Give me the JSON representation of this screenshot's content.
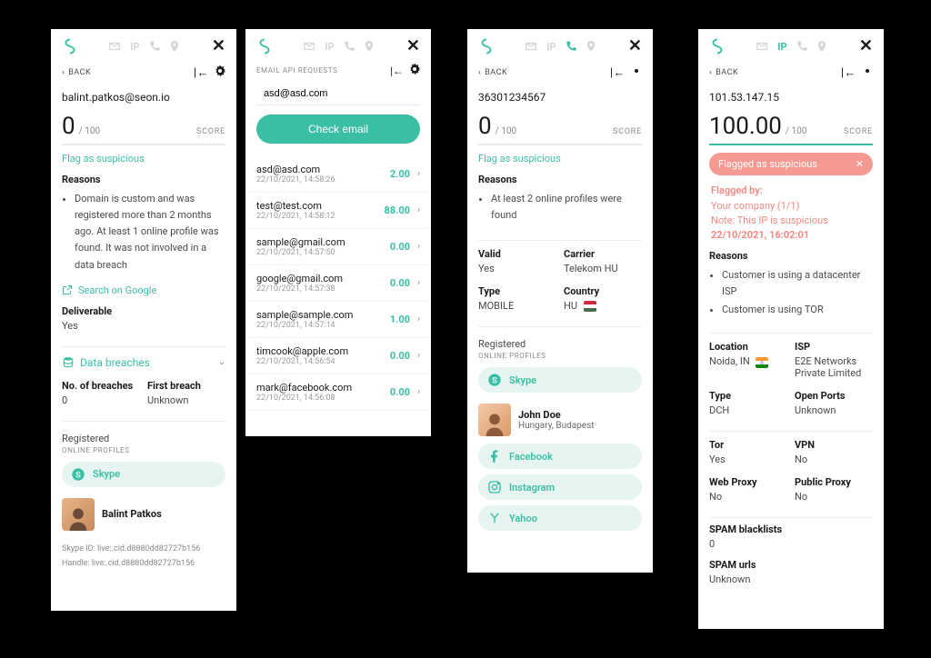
{
  "colors": {
    "accent": "#3bbfa4",
    "panel_bg": "#ffffff",
    "body_bg": "#000000",
    "text": "#1a1a1a",
    "muted": "#8a8a8a",
    "chip_bg": "#e6f5f1",
    "flag_banner_bg": "#f49a93",
    "flag_text": "#f28a82",
    "divider": "#eeeeee"
  },
  "common": {
    "back": "BACK",
    "score_label": "SCORE",
    "score_max": "/ 100",
    "flag_link": "Flag as suspicious",
    "reasons": "Reasons",
    "registered": "Registered",
    "online_profiles": "ONLINE PROFILES",
    "search_google": "Search on Google",
    "ip_label": "IP"
  },
  "panel1": {
    "subject": "balint.patkos@seon.io",
    "score": "0",
    "reasons": [
      "Domain is custom and was registered more than 2 months ago. At least 1 online profile was found. It was not involved in a data breach"
    ],
    "deliverable_k": "Deliverable",
    "deliverable_v": "Yes",
    "breaches_label": "Data breaches",
    "nob_k": "No. of breaches",
    "nob_v": "0",
    "fb_k": "First breach",
    "fb_v": "Unknown",
    "profile_skype": "Skype",
    "person_name": "Balint Patkos",
    "meta1": "Skype ID: live:.cid.d8880dd82727b156",
    "meta2": "Handle: live:.cid.d8880dd82727b156"
  },
  "panel2": {
    "title": "EMAIL API REQUESTS",
    "input_value": "asd@asd.com",
    "check_btn": "Check email",
    "rows": [
      {
        "addr": "asd@asd.com",
        "dt": "22/10/2021, 14:58:26",
        "scr": "2.00"
      },
      {
        "addr": "test@test.com",
        "dt": "22/10/2021, 14:58:12",
        "scr": "88.00"
      },
      {
        "addr": "sample@gmail.com",
        "dt": "22/10/2021, 14:57:50",
        "scr": "0.00"
      },
      {
        "addr": "google@gmail.com",
        "dt": "22/10/2021, 14:57:38",
        "scr": "0.00"
      },
      {
        "addr": "sample@sample.com",
        "dt": "22/10/2021, 14:57:14",
        "scr": "1.00"
      },
      {
        "addr": "timcook@apple.com",
        "dt": "22/10/2021, 14:56:54",
        "scr": "0.00"
      },
      {
        "addr": "mark@facebook.com",
        "dt": "22/10/2021, 14:56:08",
        "scr": "0.00"
      }
    ]
  },
  "panel3": {
    "subject": "36301234567",
    "score": "0",
    "reasons": [
      "At least 2 online profiles were found"
    ],
    "valid_k": "Valid",
    "valid_v": "Yes",
    "carrier_k": "Carrier",
    "carrier_v": "Telekom HU",
    "type_k": "Type",
    "type_v": "MOBILE",
    "country_k": "Country",
    "country_v": "HU",
    "profile_skype": "Skype",
    "person_name": "John Doe",
    "person_sub": "Hungary, Budapest",
    "profiles": {
      "fb": "Facebook",
      "ig": "Instagram",
      "yh": "Yahoo"
    }
  },
  "panel4": {
    "subject": "101.53.147.15",
    "score": "100.00",
    "score_fill_pct": 100,
    "banner": "Flagged as suspicious",
    "flagged_by_k": "Flagged by:",
    "flagged_by_v": "Your company (1/1)",
    "note": "Note: This IP is suspicious",
    "date": "22/10/2021, 16:02:01",
    "reasons": [
      "Customer is using a datacenter ISP",
      "Customer is using TOR"
    ],
    "loc_k": "Location",
    "loc_v": "Noida, IN",
    "isp_k": "ISP",
    "isp_v": "E2E Networks Private Limited",
    "type_k": "Type",
    "type_v": "DCH",
    "ports_k": "Open Ports",
    "ports_v": "Unknown",
    "tor_k": "Tor",
    "tor_v": "Yes",
    "vpn_k": "VPN",
    "vpn_v": "No",
    "wp_k": "Web Proxy",
    "wp_v": "No",
    "pp_k": "Public Proxy",
    "pp_v": "No",
    "sbl_k": "SPAM blacklists",
    "sbl_v": "0",
    "surl_k": "SPAM urls",
    "surl_v": "Unknown"
  }
}
